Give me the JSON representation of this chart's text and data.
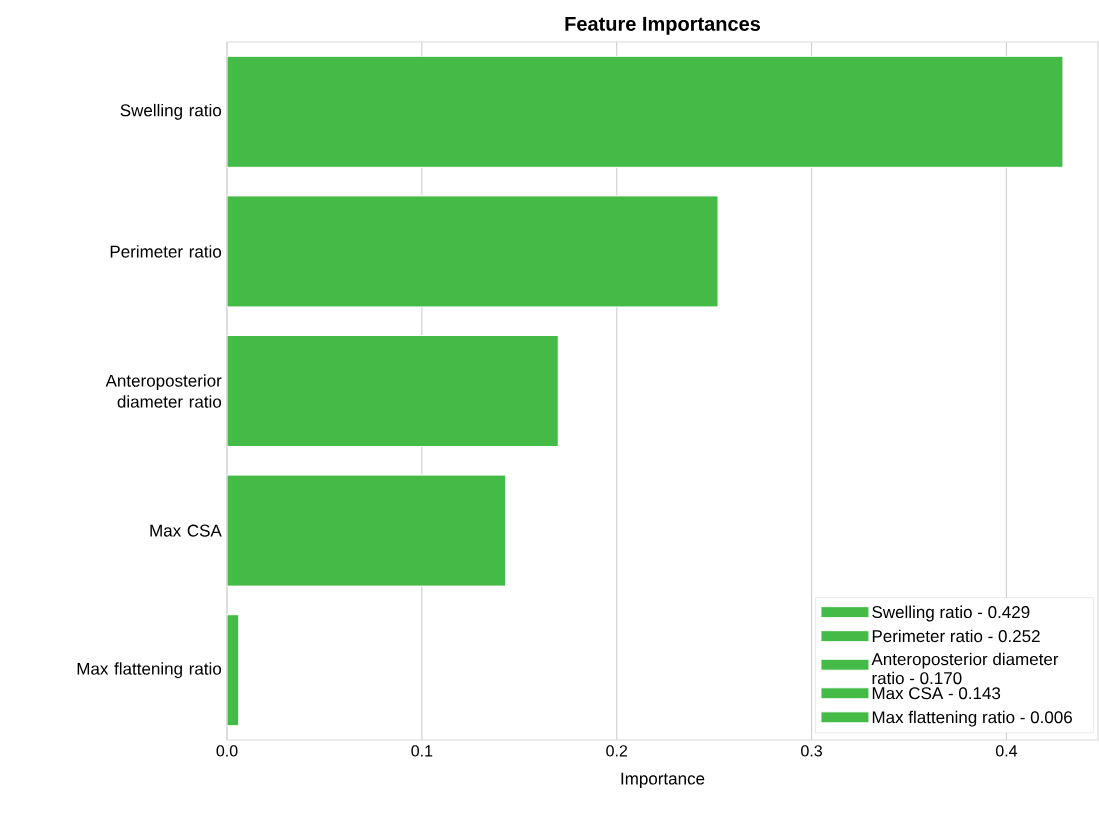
{
  "chart_data": {
    "type": "bar",
    "orientation": "horizontal",
    "title": "Feature Importances",
    "xlabel": "Importance",
    "categories": [
      "Swelling ratio",
      "Perimeter ratio",
      "Anteroposterior diameter ratio",
      "Max CSA",
      "Max flattening ratio"
    ],
    "series": [
      {
        "name": "Swelling ratio - 0.429",
        "color": "#45bb47",
        "values": [
          0.429,
          null,
          null,
          null,
          null
        ]
      },
      {
        "name": "Perimeter ratio - 0.252",
        "color": "#45bb47",
        "values": [
          null,
          0.252,
          null,
          null,
          null
        ]
      },
      {
        "name": "Anteroposterior diameter ratio - 0.170",
        "color": "#45bb47",
        "values": [
          null,
          null,
          0.17,
          null,
          null
        ]
      },
      {
        "name": "Max CSA - 0.143",
        "color": "#45bb47",
        "values": [
          null,
          null,
          null,
          0.143,
          null
        ]
      },
      {
        "name": "Max flattening ratio - 0.006",
        "color": "#45bb47",
        "values": [
          null,
          null,
          null,
          null,
          0.006
        ]
      }
    ],
    "xlim": [
      0,
      0.447
    ],
    "xticks": [
      {
        "value": 0,
        "label": "0.0"
      },
      0.1,
      0.2,
      0.3,
      0.4
    ],
    "grid": "x",
    "legend": "bottom right"
  }
}
